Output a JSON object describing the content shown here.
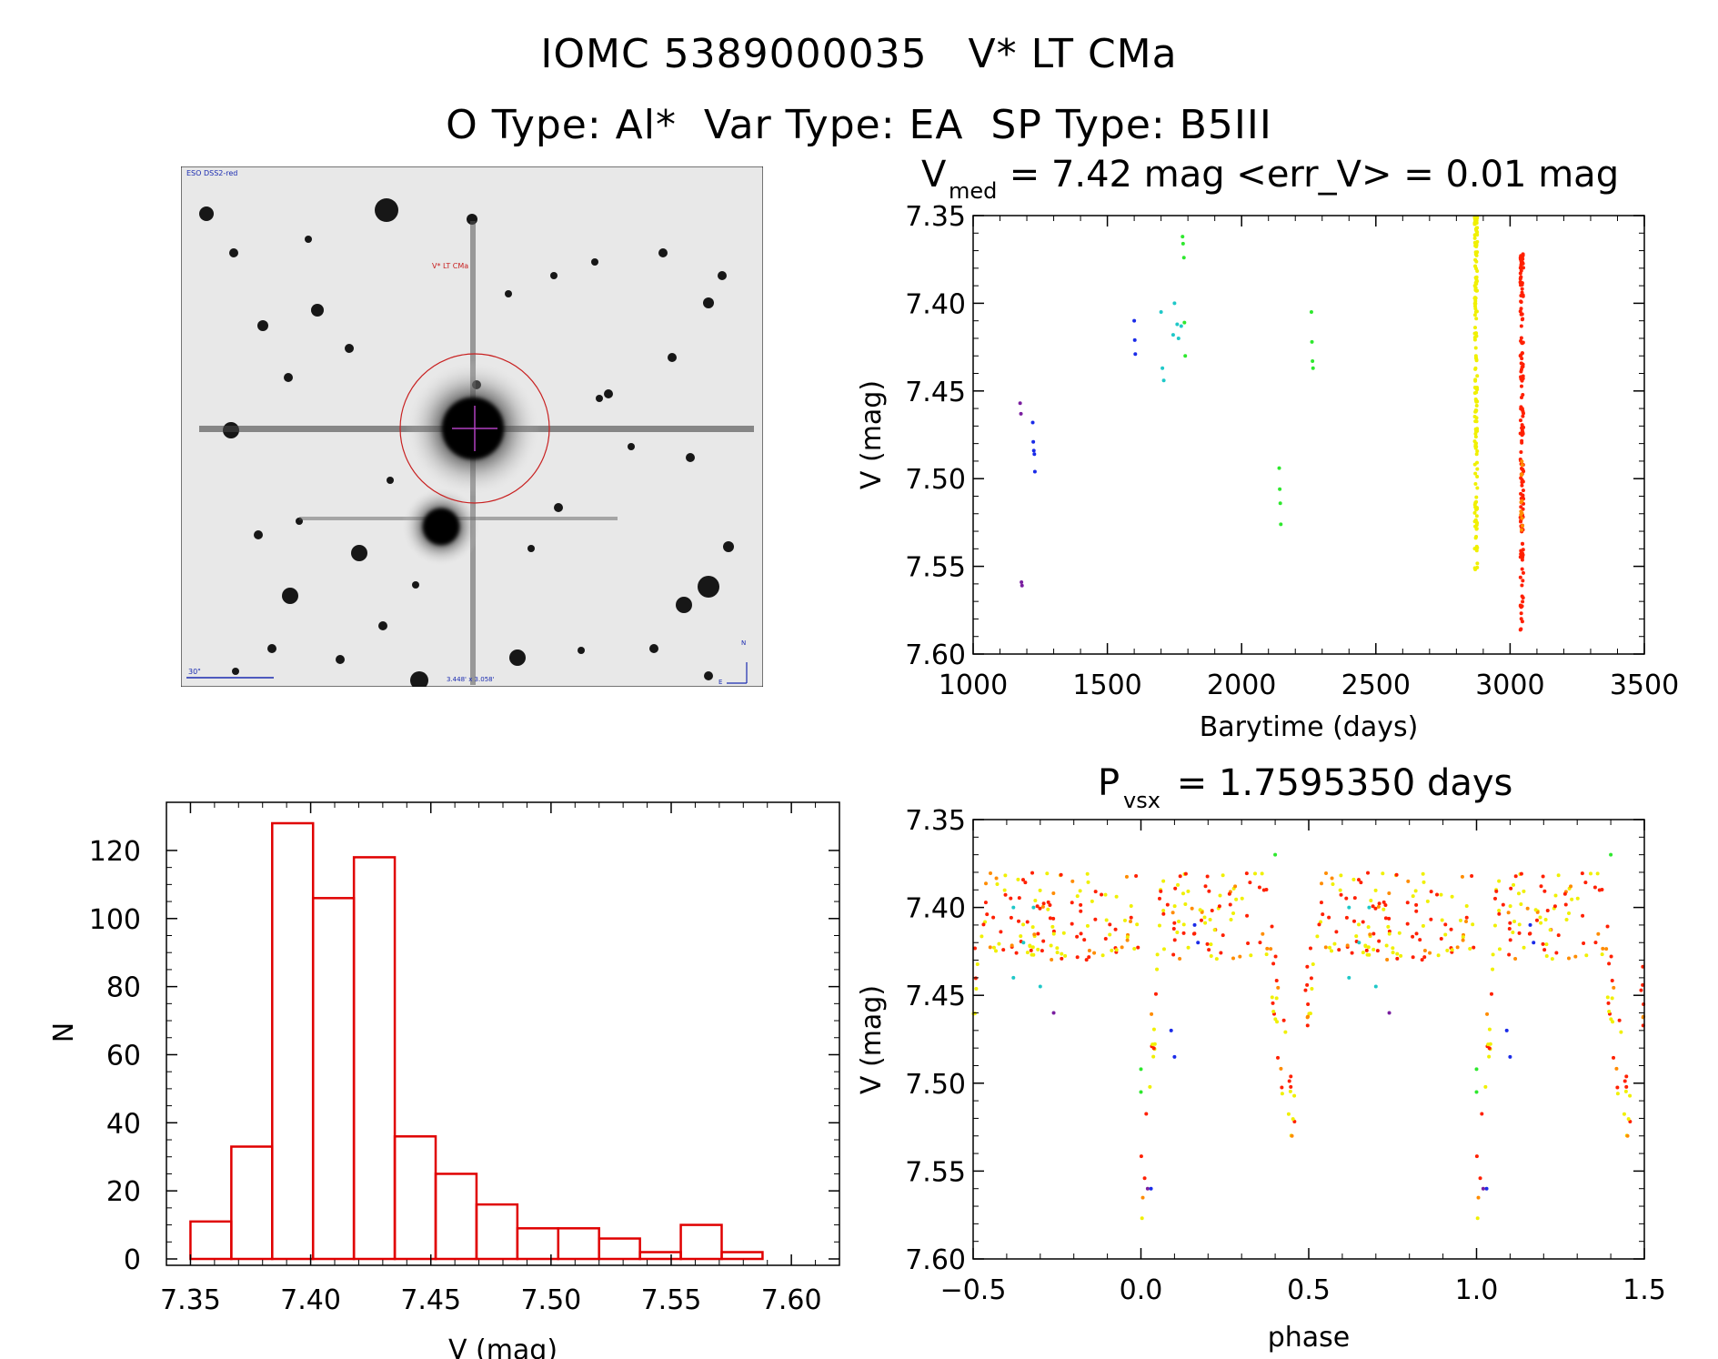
{
  "header": {
    "line1": "IOMC 5389000035   V* LT CMa",
    "line2": "O Type: Al*  Var Type: EA  SP Type: B5III"
  },
  "finder": {
    "survey_label": "ESO DSS2-red",
    "object_label": "V* LT CMa",
    "scale_label": "30\"",
    "fov_label": "3.448' x 3.058'",
    "north_label": "N",
    "east_label": "E"
  },
  "colors": {
    "purple": "#7a1fa0",
    "blue": "#1a2be8",
    "cyan": "#1fc8c8",
    "green": "#2ee82e",
    "yellow": "#f0f000",
    "orange": "#ff8c00",
    "red": "#ff2000",
    "hist": "#e00000",
    "reticle": "#c82020"
  },
  "chart_data": [
    {
      "type": "scatter",
      "panel": "light-curve",
      "title_main": "V",
      "title_sub": "med",
      "title_rest": " = 7.42 mag <err_V> = 0.01 mag",
      "xlabel": "Barytime (days)",
      "ylabel": "V (mag)",
      "xlim": [
        1000,
        3500
      ],
      "ylim": [
        7.6,
        7.35
      ],
      "xticks": [
        "1000",
        "1500",
        "2000",
        "2500",
        "3000",
        "3500"
      ],
      "yticks": [
        "7.35",
        "7.40",
        "7.45",
        "7.50",
        "7.55",
        "7.60"
      ],
      "series": [
        {
          "color": "purple",
          "x": [
            1175,
            1178,
            1180,
            1182
          ],
          "y": [
            7.457,
            7.463,
            7.559,
            7.561
          ]
        },
        {
          "color": "blue",
          "x": [
            1222,
            1224,
            1226,
            1228,
            1230
          ],
          "y": [
            7.468,
            7.479,
            7.484,
            7.486,
            7.496
          ]
        },
        {
          "color": "blue",
          "x": [
            1600,
            1602,
            1604
          ],
          "y": [
            7.41,
            7.421,
            7.429
          ]
        },
        {
          "color": "cyan",
          "x": [
            1700,
            1705,
            1710,
            1745,
            1750,
            1760,
            1765,
            1775
          ],
          "y": [
            7.405,
            7.437,
            7.444,
            7.418,
            7.4,
            7.412,
            7.42,
            7.413
          ]
        },
        {
          "color": "green",
          "x": [
            1780,
            1782,
            1785,
            1787,
            1790
          ],
          "y": [
            7.362,
            7.366,
            7.374,
            7.411,
            7.43
          ]
        },
        {
          "color": "green",
          "x": [
            2140,
            2142,
            2144,
            2146
          ],
          "y": [
            7.494,
            7.506,
            7.514,
            7.526
          ]
        },
        {
          "color": "green",
          "x": [
            2260,
            2262,
            2264,
            2266
          ],
          "y": [
            7.405,
            7.422,
            7.433,
            7.437
          ]
        },
        {
          "color": "yellow",
          "x": [
            2868,
            2870,
            2872,
            2874,
            2876,
            2878
          ],
          "y": [
            7.351,
            7.375,
            7.4,
            7.43,
            7.47,
            7.553
          ]
        },
        {
          "color": "red",
          "x": [
            3038,
            3040,
            3042,
            3044,
            3046,
            3048,
            3050
          ],
          "y": [
            7.372,
            7.385,
            7.41,
            7.44,
            7.48,
            7.56,
            7.588
          ]
        },
        {
          "color": "orange",
          "x": [
            3040,
            3042,
            3044,
            3046
          ],
          "y": [
            7.485,
            7.5,
            7.515,
            7.53
          ]
        }
      ]
    },
    {
      "type": "bar",
      "panel": "histogram",
      "xlabel": "V (mag)",
      "ylabel": "N",
      "xlim": [
        7.34,
        7.62
      ],
      "ylim": [
        0,
        130
      ],
      "xticks": [
        "7.35",
        "7.40",
        "7.45",
        "7.50",
        "7.55",
        "7.60"
      ],
      "yticks": [
        "0",
        "20",
        "40",
        "60",
        "80",
        "100",
        "120"
      ],
      "bin_edges": [
        7.35,
        7.367,
        7.384,
        7.401,
        7.418,
        7.435,
        7.452,
        7.469,
        7.486,
        7.503,
        7.52,
        7.537,
        7.554,
        7.571,
        7.588
      ],
      "values": [
        11,
        33,
        128,
        106,
        118,
        36,
        25,
        16,
        9,
        9,
        6,
        2,
        10,
        2
      ]
    },
    {
      "type": "scatter",
      "panel": "phased",
      "title_main": "P",
      "title_sub": "vsx",
      "title_rest": " = 1.7595350 days",
      "xlabel": "phase",
      "ylabel": "V (mag)",
      "xlim": [
        -0.5,
        1.5
      ],
      "ylim": [
        7.6,
        7.35
      ],
      "xticks": [
        "−0.5",
        "0.0",
        "0.5",
        "1.0",
        "1.5"
      ],
      "yticks": [
        "7.35",
        "7.40",
        "7.45",
        "7.50",
        "7.55",
        "7.60"
      ],
      "period_days": 1.759535
    }
  ]
}
